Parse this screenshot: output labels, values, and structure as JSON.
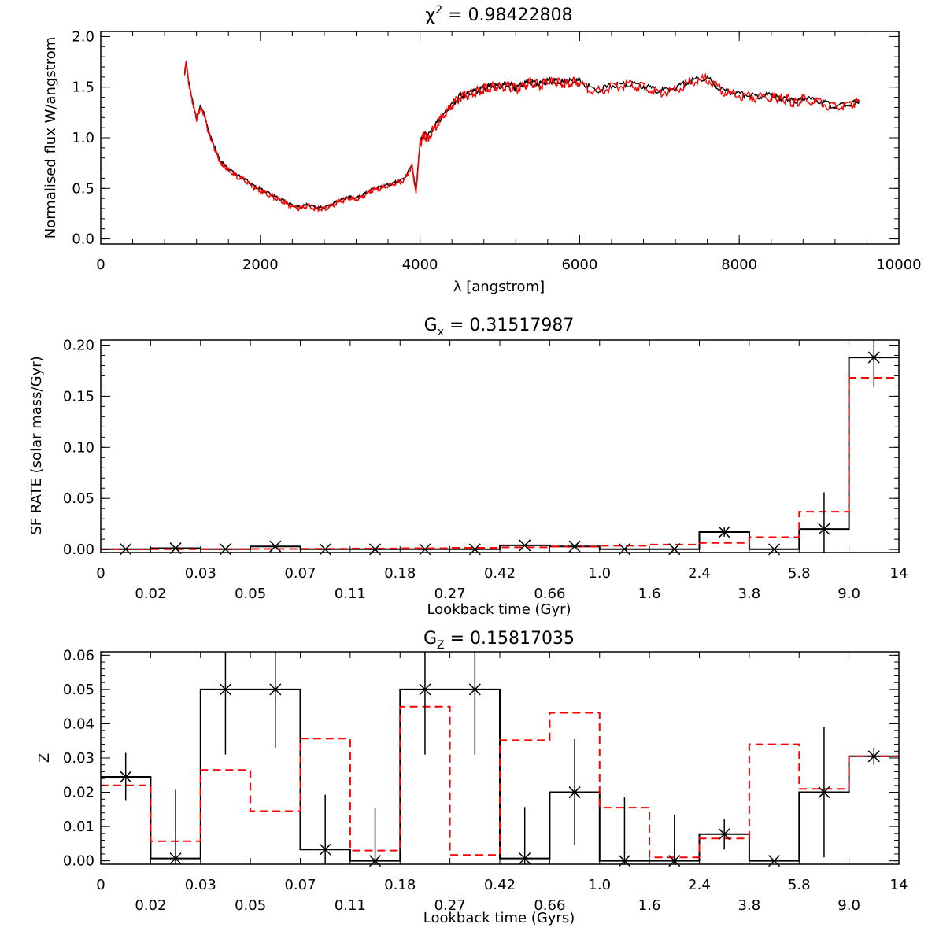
{
  "chart_data": [
    {
      "type": "line",
      "title_symbol": "χ",
      "title_superscript": "2",
      "title_rest": " = 0.98422808",
      "xlabel": "λ [angstrom]",
      "ylabel": "Normalised flux W/angstrom",
      "xlim": [
        0,
        10000
      ],
      "ylim": [
        -0.05,
        2.05
      ],
      "x_ticks": [
        0,
        2000,
        4000,
        6000,
        8000,
        10000
      ],
      "y_ticks": [
        0.0,
        0.5,
        1.0,
        1.5,
        2.0
      ],
      "x_tick_labels": [
        "0",
        "2000",
        "4000",
        "6000",
        "8000",
        "10000"
      ],
      "y_tick_labels": [
        "0.0",
        "0.5",
        "1.0",
        "1.5",
        "2.0"
      ],
      "colors": {
        "observed": "#000000",
        "model": "#ff0000"
      },
      "series": [
        {
          "color": "#ff0000",
          "x": [
            1050,
            1070,
            1100,
            1150,
            1200,
            1250,
            1300,
            1350,
            1400,
            1450,
            1500,
            1550,
            1600,
            1700,
            1800,
            1900,
            2000,
            2100,
            2200,
            2300,
            2400,
            2500,
            2600,
            2700,
            2800,
            2900,
            3000,
            3100,
            3200,
            3300,
            3400,
            3500,
            3600,
            3700,
            3800,
            3900,
            3950,
            4000,
            4050,
            4100,
            4200,
            4300,
            4400,
            4500,
            4600,
            4700,
            4800,
            4900,
            5000,
            5100,
            5200,
            5300,
            5400,
            5500,
            5600,
            5700,
            5800,
            5900,
            6000,
            6200,
            6400,
            6600,
            6800,
            7000,
            7200,
            7400,
            7600,
            7800,
            8000,
            8200,
            8400,
            8500,
            8600,
            8700,
            8800,
            9000,
            9200,
            9400,
            9500
          ],
          "y": [
            1.62,
            1.75,
            1.55,
            1.35,
            1.18,
            1.3,
            1.22,
            1.05,
            0.95,
            0.85,
            0.75,
            0.72,
            0.68,
            0.62,
            0.58,
            0.52,
            0.48,
            0.44,
            0.4,
            0.36,
            0.32,
            0.3,
            0.33,
            0.29,
            0.3,
            0.33,
            0.37,
            0.4,
            0.39,
            0.43,
            0.48,
            0.5,
            0.52,
            0.55,
            0.58,
            0.72,
            0.45,
            0.95,
            1.02,
            1.0,
            1.12,
            1.22,
            1.32,
            1.4,
            1.42,
            1.45,
            1.48,
            1.5,
            1.5,
            1.52,
            1.48,
            1.52,
            1.54,
            1.52,
            1.55,
            1.55,
            1.53,
            1.55,
            1.55,
            1.45,
            1.5,
            1.52,
            1.5,
            1.45,
            1.48,
            1.55,
            1.58,
            1.45,
            1.42,
            1.4,
            1.41,
            1.38,
            1.38,
            1.34,
            1.38,
            1.35,
            1.3,
            1.33,
            1.36
          ]
        }
      ]
    },
    {
      "type": "bar",
      "title_symbol": "G",
      "title_subscript": "x",
      "title_rest": " = 0.31517987",
      "xlabel": "Lookback time (Gyr)",
      "ylabel": "SF RATE (solar mass/Gyr)",
      "ylim": [
        -0.003,
        0.205
      ],
      "y_ticks": [
        0.0,
        0.05,
        0.1,
        0.15,
        0.2
      ],
      "y_tick_labels": [
        "0.00",
        "0.05",
        "0.10",
        "0.15",
        "0.20"
      ],
      "x_tick_labels_top": [
        "0",
        "0.03",
        "0.07",
        "0.18",
        "0.42",
        "1.0",
        "2.4",
        "5.8",
        "14"
      ],
      "x_tick_labels_bottom": [
        "0.02",
        "0.05",
        "0.11",
        "0.27",
        "0.66",
        "1.6",
        "3.8",
        "9.0"
      ],
      "num_bins": 16,
      "colors": {
        "recovered": "#000000",
        "input": "#ff0000"
      },
      "recovered_values": [
        0.0003,
        0.0012,
        0.0003,
        0.003,
        0.0002,
        0.0002,
        0.0002,
        0.0002,
        0.004,
        0.003,
        0.0003,
        0.0003,
        0.017,
        0.0002,
        0.02,
        0.188
      ],
      "recovered_errors": [
        0.0,
        0.0,
        0.0,
        0.0,
        0.0,
        0.0,
        0.0,
        0.0,
        0.0,
        0.0,
        0.0,
        0.0,
        0.0045,
        0.0,
        0.036,
        0.029
      ],
      "input_values": [
        0.0001,
        0.0002,
        0.0003,
        0.0005,
        0.0007,
        0.0009,
        0.0012,
        0.0016,
        0.0021,
        0.0028,
        0.0036,
        0.0048,
        0.0064,
        0.012,
        0.037,
        0.168
      ]
    },
    {
      "type": "bar",
      "title_symbol": "G",
      "title_subscript": "Z",
      "title_rest": " = 0.15817035",
      "xlabel": "Lookback time (Gyrs)",
      "ylabel": "Z",
      "ylim": [
        -0.001,
        0.061
      ],
      "y_ticks": [
        0.0,
        0.01,
        0.02,
        0.03,
        0.04,
        0.05,
        0.06
      ],
      "y_tick_labels": [
        "0.00",
        "0.01",
        "0.02",
        "0.03",
        "0.04",
        "0.05",
        "0.06"
      ],
      "x_tick_labels_top": [
        "0",
        "0.03",
        "0.07",
        "0.18",
        "0.42",
        "1.0",
        "2.4",
        "5.8",
        "14"
      ],
      "x_tick_labels_bottom": [
        "0.02",
        "0.05",
        "0.11",
        "0.27",
        "0.66",
        "1.6",
        "3.8",
        "9.0"
      ],
      "num_bins": 16,
      "colors": {
        "recovered": "#000000",
        "input": "#ff0000"
      },
      "recovered_values": [
        0.0245,
        0.0007,
        0.05,
        0.05,
        0.0033,
        0.0,
        0.05,
        0.05,
        0.0007,
        0.02,
        0.0,
        0.0,
        0.0078,
        0.0,
        0.02,
        0.0305
      ],
      "recovered_errors": [
        0.007,
        0.02,
        0.019,
        0.017,
        0.016,
        0.0155,
        0.019,
        0.019,
        0.015,
        0.0155,
        0.0185,
        0.0135,
        0.0045,
        0.0,
        0.019,
        0.0025
      ],
      "input_values": [
        0.022,
        0.0057,
        0.0265,
        0.0145,
        0.0357,
        0.003,
        0.045,
        0.0017,
        0.0352,
        0.0432,
        0.0155,
        0.001,
        0.0065,
        0.034,
        0.021,
        0.0305
      ]
    }
  ]
}
